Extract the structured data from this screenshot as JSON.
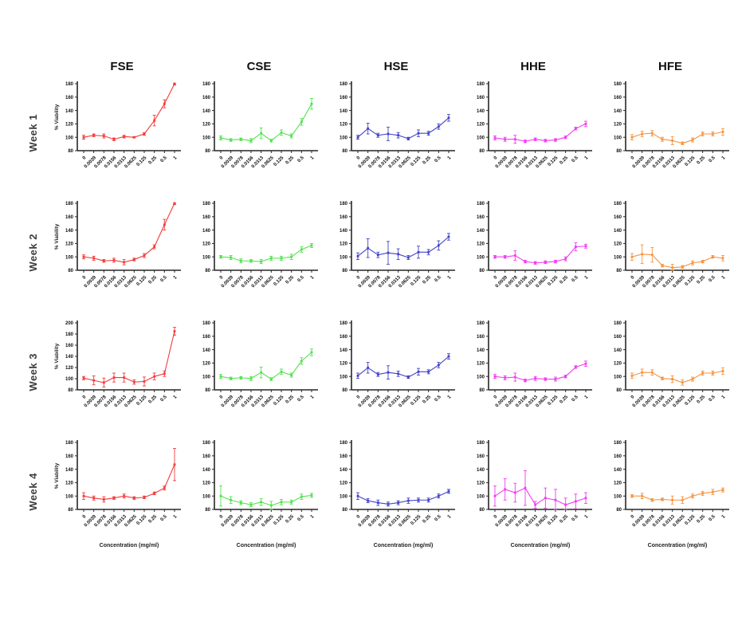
{
  "figure": {
    "background": "#ffffff",
    "axis_color": "#262626"
  },
  "columns": [
    {
      "key": "FSE",
      "title": "FSE",
      "color": "#F43C3C"
    },
    {
      "key": "CSE",
      "title": "CSE",
      "color": "#52E24E"
    },
    {
      "key": "HSE",
      "title": "HSE",
      "color": "#4343C9"
    },
    {
      "key": "HHE",
      "title": "HHE",
      "color": "#F23CF2"
    },
    {
      "key": "HFE",
      "title": "HFE",
      "color": "#F79440"
    }
  ],
  "rows": [
    {
      "label": "Week 1"
    },
    {
      "label": "Week 2"
    },
    {
      "label": "Week 3"
    },
    {
      "label": "Week 4"
    }
  ],
  "axes": {
    "categories": [
      "0",
      "0.0039",
      "0.0078",
      "0.0156",
      "0.0313",
      "0.0625",
      "0.125",
      "0.25",
      "0.5",
      "1"
    ],
    "ylabel": "% Viability",
    "xlabel": "Concentration (mg/ml)",
    "default_ylim": [
      80,
      180
    ],
    "ytick_step": 20,
    "grid": false
  },
  "chart_data": [
    {
      "type": "line",
      "week": "Week 1",
      "extract": "FSE",
      "ylim": [
        80,
        180
      ],
      "values": [
        100,
        103,
        102,
        97,
        101,
        100,
        105,
        125,
        150,
        180
      ],
      "errors": [
        3,
        2,
        3,
        2,
        2,
        1,
        2,
        8,
        6,
        2
      ]
    },
    {
      "type": "line",
      "week": "Week 1",
      "extract": "CSE",
      "ylim": [
        80,
        180
      ],
      "values": [
        99,
        96,
        97,
        95,
        106,
        95,
        107,
        102,
        123,
        150
      ],
      "errors": [
        3,
        2,
        2,
        3,
        8,
        2,
        4,
        3,
        5,
        8
      ]
    },
    {
      "type": "line",
      "week": "Week 1",
      "extract": "HSE",
      "ylim": [
        80,
        180
      ],
      "values": [
        100,
        113,
        103,
        105,
        103,
        98,
        106,
        106,
        116,
        129
      ],
      "errors": [
        3,
        8,
        3,
        10,
        4,
        2,
        5,
        3,
        4,
        5
      ]
    },
    {
      "type": "line",
      "week": "Week 1",
      "extract": "HHE",
      "ylim": [
        80,
        180
      ],
      "values": [
        99,
        97,
        97,
        94,
        97,
        95,
        96,
        100,
        113,
        120
      ],
      "errors": [
        3,
        3,
        6,
        2,
        2,
        2,
        2,
        2,
        2,
        4
      ]
    },
    {
      "type": "line",
      "week": "Week 1",
      "extract": "HFE",
      "ylim": [
        80,
        180
      ],
      "values": [
        100,
        105,
        106,
        97,
        95,
        91,
        96,
        105,
        105,
        108
      ],
      "errors": [
        4,
        4,
        4,
        3,
        6,
        2,
        3,
        3,
        3,
        5
      ]
    },
    {
      "type": "line",
      "week": "Week 2",
      "extract": "FSE",
      "ylim": [
        80,
        180
      ],
      "values": [
        100,
        98,
        94,
        95,
        92,
        96,
        102,
        115,
        148,
        180
      ],
      "errors": [
        3,
        3,
        2,
        3,
        4,
        2,
        3,
        3,
        8,
        2
      ]
    },
    {
      "type": "line",
      "week": "Week 2",
      "extract": "CSE",
      "ylim": [
        80,
        180
      ],
      "values": [
        100,
        99,
        94,
        94,
        93,
        98,
        98,
        100,
        111,
        117
      ],
      "errors": [
        2,
        3,
        3,
        2,
        3,
        3,
        3,
        4,
        4,
        3
      ]
    },
    {
      "type": "line",
      "week": "Week 2",
      "extract": "HSE",
      "ylim": [
        80,
        180
      ],
      "values": [
        101,
        113,
        103,
        106,
        104,
        99,
        107,
        107,
        117,
        130
      ],
      "errors": [
        5,
        14,
        4,
        17,
        8,
        3,
        9,
        4,
        7,
        5
      ]
    },
    {
      "type": "line",
      "week": "Week 2",
      "extract": "HHE",
      "ylim": [
        80,
        180
      ],
      "values": [
        100,
        100,
        102,
        93,
        91,
        92,
        93,
        97,
        115,
        116
      ],
      "errors": [
        2,
        2,
        7,
        2,
        2,
        2,
        2,
        3,
        6,
        3
      ]
    },
    {
      "type": "line",
      "week": "Week 2",
      "extract": "HFE",
      "ylim": [
        80,
        180
      ],
      "values": [
        100,
        104,
        103,
        87,
        84,
        85,
        91,
        93,
        100,
        98
      ],
      "errors": [
        5,
        14,
        11,
        2,
        5,
        2,
        3,
        2,
        2,
        4
      ]
    },
    {
      "type": "line",
      "week": "Week 3",
      "extract": "FSE",
      "ylim": [
        80,
        200
      ],
      "values": [
        101,
        97,
        93,
        102,
        102,
        94,
        95,
        104,
        109,
        185
      ],
      "errors": [
        3,
        8,
        8,
        8,
        8,
        4,
        8,
        6,
        5,
        7
      ]
    },
    {
      "type": "line",
      "week": "Week 3",
      "extract": "CSE",
      "ylim": [
        80,
        180
      ],
      "values": [
        100,
        97,
        98,
        97,
        106,
        96,
        107,
        102,
        123,
        136
      ],
      "errors": [
        3,
        2,
        2,
        3,
        8,
        2,
        4,
        3,
        5,
        5
      ]
    },
    {
      "type": "line",
      "week": "Week 3",
      "extract": "HSE",
      "ylim": [
        80,
        180
      ],
      "values": [
        101,
        113,
        103,
        106,
        104,
        99,
        107,
        107,
        117,
        130
      ],
      "errors": [
        4,
        8,
        3,
        10,
        4,
        2,
        5,
        3,
        4,
        4
      ]
    },
    {
      "type": "line",
      "week": "Week 3",
      "extract": "HHE",
      "ylim": [
        80,
        180
      ],
      "values": [
        100,
        98,
        99,
        94,
        97,
        96,
        96,
        100,
        114,
        119
      ],
      "errors": [
        3,
        3,
        6,
        2,
        3,
        2,
        3,
        2,
        2,
        4
      ]
    },
    {
      "type": "line",
      "week": "Week 3",
      "extract": "HFE",
      "ylim": [
        80,
        180
      ],
      "values": [
        101,
        106,
        106,
        97,
        96,
        91,
        96,
        105,
        105,
        108
      ],
      "errors": [
        4,
        5,
        4,
        2,
        5,
        4,
        3,
        3,
        3,
        5
      ]
    },
    {
      "type": "line",
      "week": "Week 4",
      "extract": "FSE",
      "ylim": [
        80,
        180
      ],
      "values": [
        100,
        97,
        95,
        97,
        100,
        97,
        98,
        104,
        112,
        147
      ],
      "errors": [
        5,
        3,
        4,
        2,
        3,
        2,
        2,
        2,
        3,
        24
      ]
    },
    {
      "type": "line",
      "week": "Week 4",
      "extract": "CSE",
      "ylim": [
        80,
        180
      ],
      "values": [
        100,
        94,
        90,
        87,
        91,
        86,
        91,
        91,
        99,
        101
      ],
      "errors": [
        15,
        5,
        3,
        3,
        5,
        6,
        4,
        3,
        4,
        3
      ]
    },
    {
      "type": "line",
      "week": "Week 4",
      "extract": "HSE",
      "ylim": [
        80,
        180
      ],
      "values": [
        100,
        93,
        90,
        88,
        90,
        93,
        94,
        94,
        100,
        107
      ],
      "errors": [
        5,
        3,
        4,
        3,
        3,
        4,
        3,
        3,
        3,
        3
      ]
    },
    {
      "type": "line",
      "week": "Week 4",
      "extract": "HHE",
      "ylim": [
        80,
        180
      ],
      "values": [
        100,
        110,
        105,
        112,
        87,
        97,
        94,
        87,
        92,
        97
      ],
      "errors": [
        15,
        16,
        14,
        26,
        5,
        15,
        16,
        10,
        11,
        8
      ]
    },
    {
      "type": "line",
      "week": "Week 4",
      "extract": "HFE",
      "ylim": [
        80,
        180
      ],
      "values": [
        100,
        100,
        94,
        95,
        94,
        94,
        100,
        104,
        106,
        109
      ],
      "errors": [
        2,
        4,
        2,
        2,
        6,
        5,
        3,
        3,
        4,
        3
      ]
    }
  ]
}
